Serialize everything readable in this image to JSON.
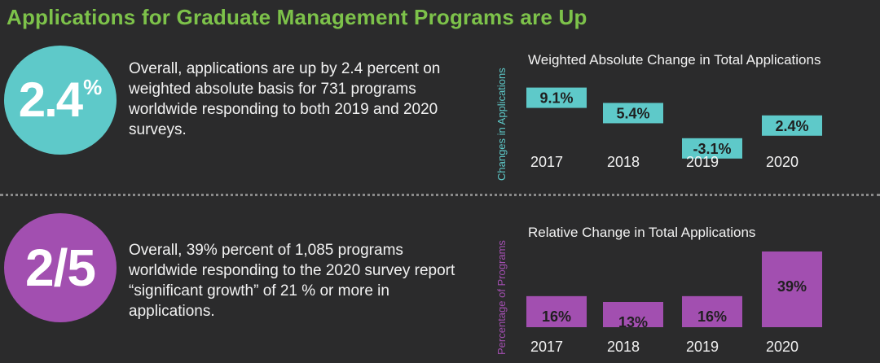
{
  "title": "Applications for Graduate Management Programs are Up",
  "stat1": {
    "value": "2.4",
    "suffix": "%",
    "text": "Overall, applications are up by 2.4 percent on weighted absolute basis for 731 programs worldwide responding to both 2019 and 2020 surveys."
  },
  "stat2": {
    "value": "2/5",
    "text": "Overall, 39% percent of 1,085 programs worldwide responding to the 2020 survey report “significant growth” of 21 % or more in applications."
  },
  "colors": {
    "teal": "#5ec9c9",
    "purple": "#a24fb0",
    "green": "#7dc24a",
    "background": "#2b2b2c"
  },
  "chart_data": [
    {
      "type": "bar",
      "title": "Weighted Absolute Change in Total Applications",
      "ylabel": "Changes in Applications",
      "categories": [
        "2017",
        "2018",
        "2019",
        "2020"
      ],
      "values": [
        9.1,
        5.4,
        -3.1,
        2.4
      ],
      "labels": [
        "9.1%",
        "5.4%",
        "-3.1%",
        "2.4%"
      ],
      "color": "#5ec9c9"
    },
    {
      "type": "bar",
      "title": "Relative Change in Total Applications",
      "ylabel": "Percentage of Programs",
      "categories": [
        "2017",
        "2018",
        "2019",
        "2020"
      ],
      "values": [
        16,
        13,
        16,
        39
      ],
      "labels": [
        "16%",
        "13%",
        "16%",
        "39%"
      ],
      "color": "#a24fb0"
    }
  ]
}
